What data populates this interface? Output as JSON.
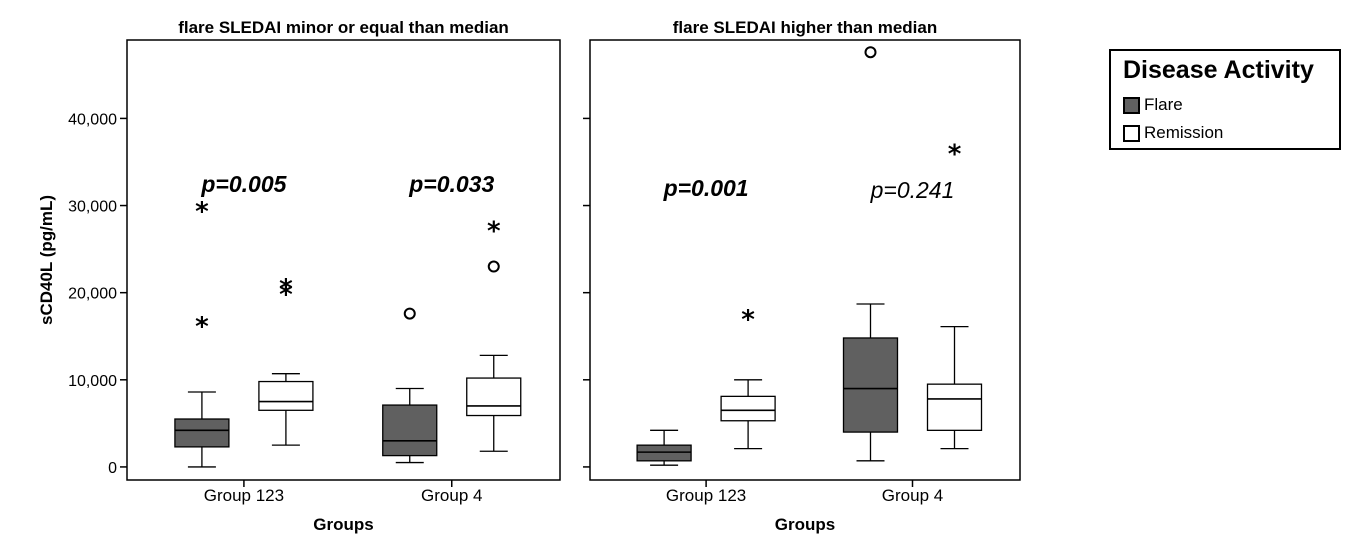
{
  "chart_data": {
    "type": "boxplot",
    "ylabel": "sCD40L (pg/mL)",
    "ylim": [
      -1500,
      49000
    ],
    "yticks": [
      0,
      10000,
      20000,
      30000,
      40000
    ],
    "ytick_labels": [
      "0",
      "10,000",
      "20,000",
      "30,000",
      "40,000"
    ],
    "groups_xlabel": "Groups",
    "categories": [
      "Group 123",
      "Group 4"
    ],
    "legend": {
      "title": "Disease Activity",
      "position": "right",
      "items": [
        {
          "name": "Flare",
          "color": "#606060"
        },
        {
          "name": "Remission",
          "color": "#ffffff"
        }
      ]
    },
    "panels": [
      {
        "title": "flare SLEDAI minor or equal than median",
        "xlabel": "Groups",
        "pvalues": [
          {
            "category": "Group 123",
            "text": "p=0.005",
            "bold": true,
            "y": 32500
          },
          {
            "category": "Group 4",
            "text": "p=0.033",
            "bold": true,
            "y": 32500
          }
        ],
        "boxes": [
          {
            "category": "Group 123",
            "series": "Flare",
            "whisker_low": 0,
            "q1": 2300,
            "median": 4200,
            "q3": 5500,
            "whisker_high": 8600,
            "outliers": [
              {
                "value": 16500,
                "marker": "star"
              },
              {
                "value": 29700,
                "marker": "star"
              }
            ]
          },
          {
            "category": "Group 123",
            "series": "Remission",
            "whisker_low": 2500,
            "q1": 6500,
            "median": 7500,
            "q3": 9800,
            "whisker_high": 10700,
            "outliers": [
              {
                "value": 20200,
                "marker": "star"
              },
              {
                "value": 20900,
                "marker": "star"
              }
            ]
          },
          {
            "category": "Group 4",
            "series": "Flare",
            "whisker_low": 500,
            "q1": 1300,
            "median": 3000,
            "q3": 7100,
            "whisker_high": 9000,
            "outliers": [
              {
                "value": 17600,
                "marker": "circle"
              }
            ]
          },
          {
            "category": "Group 4",
            "series": "Remission",
            "whisker_low": 1800,
            "q1": 5900,
            "median": 7000,
            "q3": 10200,
            "whisker_high": 12800,
            "outliers": [
              {
                "value": 23000,
                "marker": "circle"
              },
              {
                "value": 27500,
                "marker": "star"
              }
            ]
          }
        ]
      },
      {
        "title": "flare SLEDAI higher than median",
        "xlabel": "Groups",
        "pvalues": [
          {
            "category": "Group 123",
            "text": "p=0.001",
            "bold": true,
            "y": 32000
          },
          {
            "category": "Group 4",
            "text": "p=0.241",
            "bold": false,
            "y": 31800
          }
        ],
        "boxes": [
          {
            "category": "Group 123",
            "series": "Flare",
            "whisker_low": 200,
            "q1": 700,
            "median": 1700,
            "q3": 2500,
            "whisker_high": 4200,
            "outliers": []
          },
          {
            "category": "Group 123",
            "series": "Remission",
            "whisker_low": 2100,
            "q1": 5300,
            "median": 6500,
            "q3": 8100,
            "whisker_high": 10000,
            "outliers": [
              {
                "value": 17300,
                "marker": "star"
              }
            ]
          },
          {
            "category": "Group 4",
            "series": "Flare",
            "whisker_low": 700,
            "q1": 4000,
            "median": 9000,
            "q3": 14800,
            "whisker_high": 18700,
            "outliers": [
              {
                "value": 47600,
                "marker": "circle"
              }
            ]
          },
          {
            "category": "Group 4",
            "series": "Remission",
            "whisker_low": 2100,
            "q1": 4200,
            "median": 7800,
            "q3": 9500,
            "whisker_high": 16100,
            "outliers": [
              {
                "value": 36300,
                "marker": "star"
              }
            ]
          }
        ]
      }
    ]
  }
}
